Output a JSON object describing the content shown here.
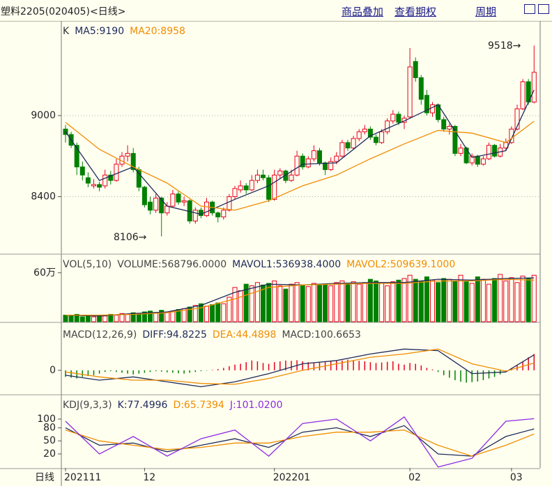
{
  "header": {
    "title": "塑料2205(020405)<日线>",
    "links": [
      "商品叠加",
      "查看期权",
      "周期"
    ]
  },
  "x_axis": {
    "label": "日线",
    "ticks": [
      {
        "value": 0,
        "label": "202111"
      },
      {
        "value": 14,
        "label": "12"
      },
      {
        "value": 37,
        "label": "202201"
      },
      {
        "value": 61,
        "label": "02"
      },
      {
        "value": 79,
        "label": "03"
      }
    ]
  },
  "chart_data": [
    {
      "type": "candlestick",
      "legend": [
        {
          "text": "K",
          "color": "#333333"
        },
        {
          "text": "MA5:9190",
          "color": "#1e2a5a"
        },
        {
          "text": "MA20:8958",
          "color": "#f08c00"
        }
      ],
      "annotations": [
        "9518→",
        "8106→"
      ],
      "ylim": [
        7980,
        9690
      ],
      "yticks": [
        8400,
        9000
      ],
      "grid": true,
      "up_color": "#e8001c",
      "down_color": "#008000",
      "candles": [
        [
          8900,
          8930,
          8800,
          8860
        ],
        [
          8860,
          8880,
          8760,
          8780
        ],
        [
          8780,
          8800,
          8560,
          8620
        ],
        [
          8620,
          8660,
          8520,
          8560
        ],
        [
          8540,
          8580,
          8470,
          8500
        ],
        [
          8480,
          8530,
          8460,
          8490
        ],
        [
          8490,
          8510,
          8440,
          8470
        ],
        [
          8480,
          8600,
          8460,
          8560
        ],
        [
          8560,
          8590,
          8490,
          8520
        ],
        [
          8520,
          8680,
          8510,
          8640
        ],
        [
          8640,
          8730,
          8620,
          8700
        ],
        [
          8700,
          8780,
          8660,
          8720
        ],
        [
          8720,
          8760,
          8580,
          8600
        ],
        [
          8600,
          8620,
          8440,
          8470
        ],
        [
          8470,
          8480,
          8320,
          8340
        ],
        [
          8360,
          8400,
          8270,
          8300
        ],
        [
          8300,
          8420,
          8280,
          8390
        ],
        [
          8390,
          8400,
          8106,
          8280
        ],
        [
          8280,
          8360,
          8260,
          8330
        ],
        [
          8330,
          8450,
          8320,
          8420
        ],
        [
          8420,
          8440,
          8340,
          8360
        ],
        [
          8360,
          8400,
          8330,
          8370
        ],
        [
          8370,
          8380,
          8200,
          8220
        ],
        [
          8220,
          8320,
          8200,
          8300
        ],
        [
          8300,
          8320,
          8240,
          8260
        ],
        [
          8260,
          8390,
          8250,
          8360
        ],
        [
          8360,
          8370,
          8260,
          8280
        ],
        [
          8280,
          8290,
          8210,
          8250
        ],
        [
          8250,
          8320,
          8230,
          8300
        ],
        [
          8300,
          8420,
          8290,
          8400
        ],
        [
          8400,
          8480,
          8380,
          8460
        ],
        [
          8450,
          8520,
          8430,
          8480
        ],
        [
          8480,
          8500,
          8420,
          8450
        ],
        [
          8450,
          8560,
          8440,
          8520
        ],
        [
          8520,
          8600,
          8500,
          8560
        ],
        [
          8560,
          8600,
          8520,
          8540
        ],
        [
          8540,
          8560,
          8360,
          8380
        ],
        [
          8380,
          8600,
          8370,
          8560
        ],
        [
          8560,
          8610,
          8530,
          8590
        ],
        [
          8590,
          8600,
          8500,
          8520
        ],
        [
          8520,
          8600,
          8510,
          8560
        ],
        [
          8560,
          8740,
          8550,
          8700
        ],
        [
          8700,
          8720,
          8600,
          8620
        ],
        [
          8620,
          8700,
          8610,
          8680
        ],
        [
          8680,
          8780,
          8660,
          8740
        ],
        [
          8740,
          8760,
          8630,
          8650
        ],
        [
          8650,
          8660,
          8560,
          8600
        ],
        [
          8600,
          8690,
          8590,
          8660
        ],
        [
          8660,
          8730,
          8640,
          8700
        ],
        [
          8700,
          8820,
          8690,
          8800
        ],
        [
          8800,
          8820,
          8740,
          8760
        ],
        [
          8760,
          8850,
          8750,
          8830
        ],
        [
          8830,
          8900,
          8810,
          8880
        ],
        [
          8880,
          8930,
          8860,
          8900
        ],
        [
          8900,
          8920,
          8820,
          8840
        ],
        [
          8840,
          8860,
          8780,
          8800
        ],
        [
          8800,
          8900,
          8790,
          8880
        ],
        [
          8880,
          8980,
          8860,
          8960
        ],
        [
          8960,
          9040,
          8940,
          9010
        ],
        [
          9010,
          9030,
          8930,
          8950
        ],
        [
          8950,
          9000,
          8900,
          8980
        ],
        [
          8990,
          9500,
          8980,
          9360
        ],
        [
          9400,
          9430,
          9250,
          9280
        ],
        [
          9280,
          9300,
          9080,
          9120
        ],
        [
          9150,
          9190,
          9000,
          9020
        ],
        [
          9020,
          9100,
          8990,
          9080
        ],
        [
          9080,
          9090,
          8950,
          8970
        ],
        [
          8970,
          8990,
          8880,
          8900
        ],
        [
          8900,
          8940,
          8860,
          8920
        ],
        [
          8920,
          8930,
          8700,
          8720
        ],
        [
          8720,
          8790,
          8700,
          8760
        ],
        [
          8760,
          8770,
          8640,
          8650
        ],
        [
          8650,
          8720,
          8630,
          8700
        ],
        [
          8700,
          8710,
          8620,
          8640
        ],
        [
          8640,
          8700,
          8630,
          8680
        ],
        [
          8680,
          8800,
          8670,
          8780
        ],
        [
          8780,
          8790,
          8690,
          8700
        ],
        [
          8700,
          8790,
          8690,
          8760
        ],
        [
          8760,
          8830,
          8740,
          8800
        ],
        [
          8800,
          8920,
          8790,
          8900
        ],
        [
          8900,
          9080,
          8890,
          9050
        ],
        [
          9050,
          9270,
          9040,
          9250
        ],
        [
          9250,
          9270,
          9080,
          9100
        ],
        [
          9100,
          9518,
          9090,
          9320
        ]
      ],
      "line_x": [
        0,
        6,
        12,
        18,
        24,
        30,
        36,
        42,
        48,
        54,
        60,
        66,
        72,
        78,
        83
      ],
      "lines": [
        {
          "color": "#1e2a5a",
          "values": [
            8880,
            8520,
            8620,
            8330,
            8270,
            8380,
            8480,
            8640,
            8650,
            8850,
            8960,
            9080,
            8690,
            8740,
            9190
          ]
        },
        {
          "color": "#f08c00",
          "values": [
            8950,
            8750,
            8620,
            8500,
            8330,
            8300,
            8370,
            8480,
            8560,
            8680,
            8790,
            8890,
            8870,
            8800,
            8958
          ]
        }
      ]
    },
    {
      "type": "bar",
      "legend": [
        {
          "text": "VOL(5,10)",
          "color": "#444444"
        },
        {
          "text": "VOLUME:568796.0000",
          "color": "#444444"
        },
        {
          "text": "MAVOL1:536938.4000",
          "color": "#1e2a5a"
        },
        {
          "text": "MAVOL2:509639.1000",
          "color": "#f08c00"
        }
      ],
      "ylim": [
        0,
        82
      ],
      "yticks": [
        {
          "value": 60,
          "label": "60万"
        }
      ],
      "values": [
        8,
        7,
        9,
        6,
        7,
        6,
        8,
        7,
        9,
        8,
        10,
        9,
        11,
        10,
        12,
        13,
        11,
        14,
        12,
        13,
        15,
        16,
        18,
        20,
        22,
        19,
        21,
        23,
        22,
        30,
        42,
        38,
        46,
        44,
        48,
        45,
        47,
        50,
        44,
        40,
        46,
        48,
        45,
        43,
        47,
        46,
        45,
        44,
        48,
        50,
        47,
        49,
        46,
        48,
        52,
        50,
        47,
        44,
        49,
        51,
        53,
        57,
        52,
        50,
        55,
        51,
        48,
        53,
        52,
        50,
        57,
        49,
        47,
        55,
        52,
        46,
        53,
        58,
        50,
        54,
        48,
        56,
        53,
        57
      ],
      "line_x": [
        0,
        6,
        12,
        18,
        24,
        30,
        36,
        42,
        48,
        54,
        60,
        66,
        72,
        78,
        83
      ],
      "lines": [
        {
          "color": "#1e2a5a",
          "values": [
            8,
            7,
            10,
            12,
            20,
            36,
            46,
            45,
            47,
            48,
            48,
            52,
            51,
            53,
            53.7
          ]
        },
        {
          "color": "#f08c00",
          "values": [
            8,
            8,
            9,
            11,
            17,
            28,
            42,
            45,
            46,
            47,
            47,
            50,
            50,
            52,
            51
          ]
        }
      ]
    },
    {
      "type": "macd",
      "legend": [
        {
          "text": "MACD(12,26,9)",
          "color": "#444444"
        },
        {
          "text": "DIFF:94.8225",
          "color": "#1e2a5a"
        },
        {
          "text": "DEA:44.4898",
          "color": "#f08c00"
        },
        {
          "text": "MACD:100.6653",
          "color": "#444444"
        }
      ],
      "ylim": [
        -145,
        280
      ],
      "yticks": [
        0
      ],
      "values": [
        -40,
        -45,
        -50,
        -40,
        -35,
        -30,
        -20,
        -10,
        -5,
        -10,
        -15,
        -20,
        -25,
        -20,
        -15,
        -10,
        -5,
        -8,
        -12,
        -15,
        -18,
        -20,
        -15,
        -10,
        -5,
        -2,
        3,
        8,
        15,
        25,
        35,
        40,
        50,
        60,
        55,
        45,
        40,
        50,
        55,
        60,
        58,
        62,
        55,
        50,
        45,
        48,
        52,
        55,
        58,
        60,
        65,
        62,
        58,
        55,
        50,
        45,
        48,
        52,
        55,
        40,
        35,
        45,
        40,
        30,
        15,
        5,
        -10,
        -30,
        -45,
        -60,
        -70,
        -75,
        -72,
        -68,
        -60,
        -50,
        -40,
        -25,
        -10,
        10,
        30,
        55,
        80,
        100
      ],
      "line_x": [
        0,
        6,
        12,
        18,
        24,
        30,
        36,
        42,
        48,
        54,
        60,
        66,
        72,
        78,
        83
      ],
      "lines": [
        {
          "color": "#1e2a5a",
          "values": [
            -30,
            -60,
            -40,
            -70,
            -100,
            -70,
            -20,
            40,
            60,
            100,
            130,
            120,
            -20,
            -10,
            94.8
          ]
        },
        {
          "color": "#f08c00",
          "values": [
            -10,
            -40,
            -60,
            -60,
            -80,
            -85,
            -50,
            0,
            40,
            80,
            100,
            130,
            40,
            -5,
            44.5
          ]
        }
      ]
    },
    {
      "type": "line",
      "legend": [
        {
          "text": "KDJ(9,3,3)",
          "color": "#444444"
        },
        {
          "text": "K:77.4996",
          "color": "#1e2a5a"
        },
        {
          "text": "D:65.7394",
          "color": "#f08c00"
        },
        {
          "text": "J:101.0200",
          "color": "#8a2be2"
        }
      ],
      "ylim": [
        -12,
        151
      ],
      "yticks": [
        100,
        80,
        50,
        20
      ],
      "line_x": [
        0,
        6,
        12,
        18,
        24,
        30,
        36,
        42,
        48,
        54,
        60,
        66,
        72,
        78,
        83
      ],
      "lines": [
        {
          "color": "#1e2a5a",
          "values": [
            80,
            40,
            45,
            25,
            40,
            55,
            35,
            70,
            80,
            60,
            85,
            20,
            15,
            60,
            77.5
          ]
        },
        {
          "color": "#f08c00",
          "values": [
            75,
            50,
            40,
            30,
            35,
            45,
            45,
            60,
            70,
            70,
            75,
            40,
            15,
            40,
            65.7
          ]
        },
        {
          "color": "#8a2be2",
          "values": [
            95,
            20,
            60,
            15,
            55,
            75,
            15,
            90,
            100,
            50,
            105,
            -10,
            10,
            95,
            101
          ]
        }
      ]
    }
  ]
}
